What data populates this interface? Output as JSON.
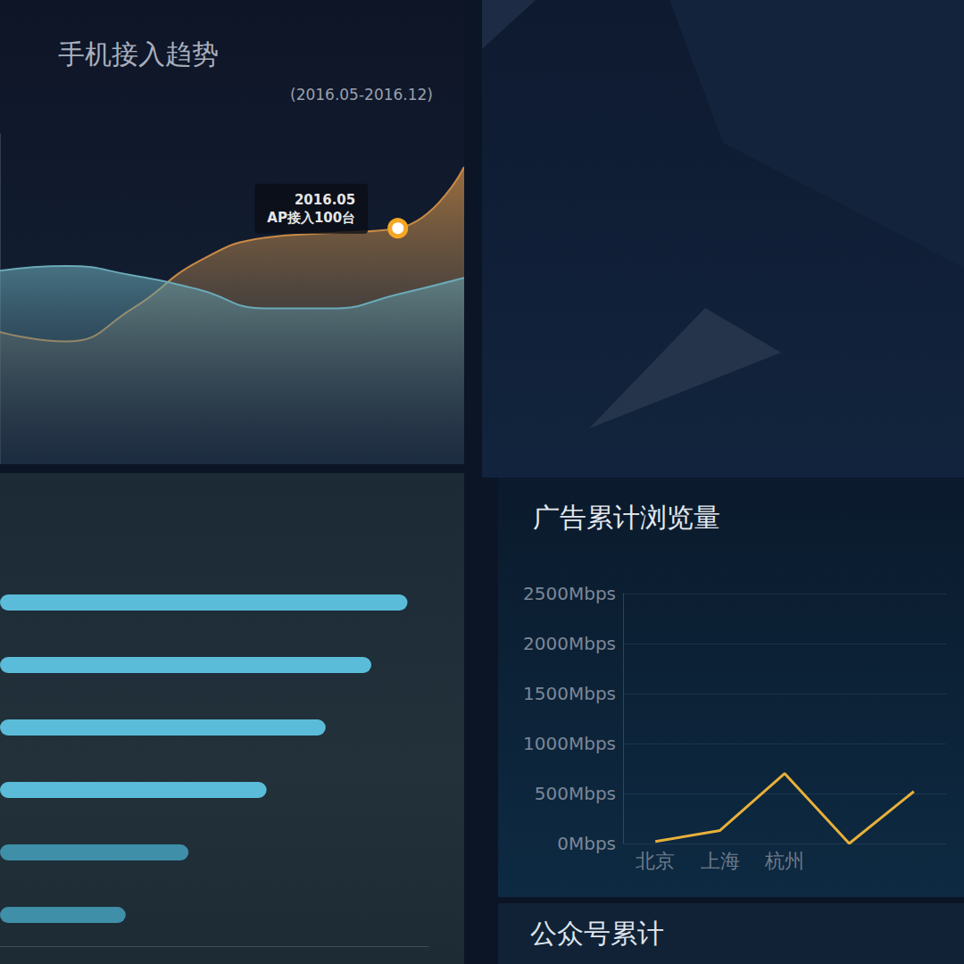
{
  "chart_data": [
    {
      "type": "area",
      "title": "手机接入趋势",
      "subtitle": "(2016.05-2016.12)",
      "categories": [
        null,
        null,
        null,
        null,
        null,
        null,
        null,
        null
      ],
      "series": [
        {
          "color": "#c98a45",
          "values": [
            56,
            52,
            66,
            86,
            96,
            98,
            100,
            126
          ]
        },
        {
          "color": "#6aaab8",
          "values": [
            82,
            84,
            80,
            74,
            66,
            66,
            72,
            79
          ]
        }
      ],
      "annotations": [
        {
          "text": "2016.05\nAP接入100台",
          "value": 100
        }
      ],
      "ylim": [
        0,
        140
      ],
      "grid": false,
      "tick_labels": false
    },
    {
      "type": "bar",
      "orientation": "horizontal",
      "categories": [
        null,
        null,
        null,
        null,
        null,
        null
      ],
      "values": [
        428,
        390,
        342,
        280,
        198,
        132
      ],
      "colors": [
        "#5bbcd9",
        "#5bbcd9",
        "#5bbcd9",
        "#5bbcd9",
        "#3f8fa8",
        "#3f8fa8"
      ],
      "xlim": [
        0,
        450
      ],
      "grid": false,
      "tick_labels": false
    },
    {
      "type": "line",
      "title": "广告累计浏览量",
      "categories": [
        "北京",
        "上海",
        "杭州",
        null,
        null
      ],
      "values": [
        20,
        130,
        700,
        0,
        520
      ],
      "color": "#e8b03a",
      "ylim": [
        0,
        2500
      ],
      "yticks": [
        {
          "value": 0,
          "label": "0Mbps"
        },
        {
          "value": 500,
          "label": "500Mbps"
        },
        {
          "value": 1000,
          "label": "1000Mbps"
        },
        {
          "value": 1500,
          "label": "1500Mbps"
        },
        {
          "value": 2000,
          "label": "2000Mbps"
        },
        {
          "value": 2500,
          "label": "2500Mbps"
        }
      ],
      "grid": true
    }
  ],
  "footer_title": "公众号累计"
}
